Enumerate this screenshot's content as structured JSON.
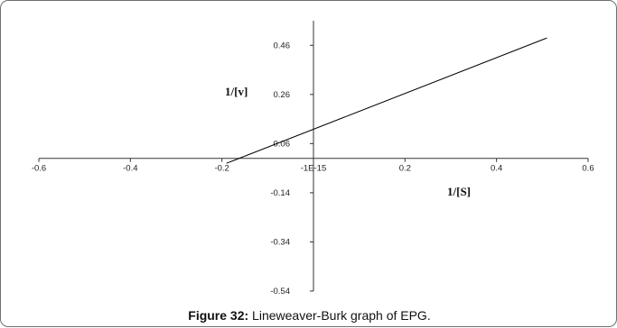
{
  "chart_data": {
    "type": "line",
    "xlabel": "1/[S]",
    "ylabel": "1/[v]",
    "xlim": [
      -0.6,
      0.6
    ],
    "ylim": [
      -0.54,
      0.56
    ],
    "x_ticks": [
      -0.6,
      -0.4,
      -0.2,
      0,
      0.2,
      0.4,
      0.6
    ],
    "x_tick_labels": [
      "-0.6",
      "-0.4",
      "-0.2",
      "-1E-15",
      "0.2",
      "0.4",
      "0.6"
    ],
    "y_ticks": [
      0.46,
      0.26,
      0.06,
      -0.14,
      -0.34,
      -0.54
    ],
    "y_tick_labels": [
      "0.46",
      "0.26",
      "0.06",
      "-0.14",
      "-0.34",
      "-0.54"
    ],
    "series": [
      {
        "x": [
          -0.19,
          0.51
        ],
        "y": [
          -0.02,
          0.49
        ],
        "color": "#000000"
      }
    ],
    "grid": false
  },
  "caption": {
    "label": "Figure 32:",
    "text": " Lineweaver-Burk graph of EPG."
  }
}
